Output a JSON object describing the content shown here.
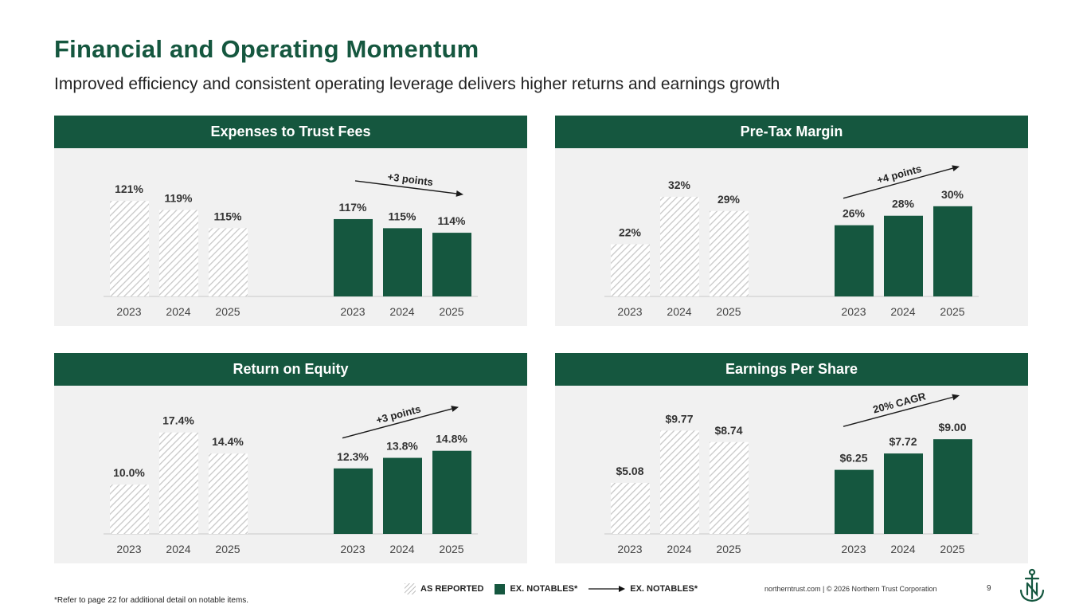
{
  "page": {
    "title": "Financial and Operating Momentum",
    "subtitle": "Improved efficiency and consistent operating leverage delivers higher returns and earnings growth",
    "footnote": "*Refer to page 22 for additional detail on notable items.",
    "footer": "northerntrust.com | © 2026 Northern Trust Corporation",
    "page_number": "9"
  },
  "legend": {
    "as_reported": "AS REPORTED",
    "ex_notables": "EX. NOTABLES*",
    "ex_notables_trend": "EX. NOTABLES*"
  },
  "colors": {
    "brand": "#15573f",
    "panel_bg": "#f1f1f1",
    "hatch": "#c8c8c8"
  },
  "chart_data": [
    {
      "type": "bar",
      "title": "Expenses to Trust Fees",
      "categories": [
        "2023",
        "2024",
        "2025"
      ],
      "ylim": [
        100,
        124
      ],
      "series": [
        {
          "name": "AS REPORTED",
          "values": [
            121,
            119,
            115
          ],
          "labels": [
            "121%",
            "119%",
            "115%"
          ]
        },
        {
          "name": "EX. NOTABLES*",
          "values": [
            117,
            115,
            114
          ],
          "labels": [
            "117%",
            "115%",
            "114%"
          ]
        }
      ],
      "trend": {
        "label": "+3 points",
        "direction": "down"
      }
    },
    {
      "type": "bar",
      "title": "Pre-Tax Margin",
      "categories": [
        "2023",
        "2024",
        "2025"
      ],
      "ylim": [
        11,
        34
      ],
      "series": [
        {
          "name": "AS REPORTED",
          "values": [
            22,
            32,
            29
          ],
          "labels": [
            "22%",
            "32%",
            "29%"
          ]
        },
        {
          "name": "EX. NOTABLES*",
          "values": [
            26,
            28,
            30
          ],
          "labels": [
            "26%",
            "28%",
            "30%"
          ]
        }
      ],
      "trend": {
        "label": "+4 points",
        "direction": "up"
      }
    },
    {
      "type": "bar",
      "title": "Return on Equity",
      "categories": [
        "2023",
        "2024",
        "2025"
      ],
      "ylim": [
        3,
        18.5
      ],
      "series": [
        {
          "name": "AS REPORTED",
          "values": [
            10.0,
            17.4,
            14.4
          ],
          "labels": [
            "10.0%",
            "17.4%",
            "14.4%"
          ]
        },
        {
          "name": "EX. NOTABLES*",
          "values": [
            12.3,
            13.8,
            14.8
          ],
          "labels": [
            "12.3%",
            "13.8%",
            "14.8%"
          ]
        }
      ],
      "trend": {
        "label": "+3 points",
        "direction": "up"
      }
    },
    {
      "type": "bar",
      "title": "Earnings Per Share",
      "categories": [
        "2023",
        "2024",
        "2025"
      ],
      "ylim": [
        0.5,
        10.3
      ],
      "series": [
        {
          "name": "AS REPORTED",
          "values": [
            5.08,
            9.77,
            8.74
          ],
          "labels": [
            "$5.08",
            "$9.77",
            "$8.74"
          ]
        },
        {
          "name": "EX. NOTABLES*",
          "values": [
            6.25,
            7.72,
            9.0
          ],
          "labels": [
            "$6.25",
            "$7.72",
            "$9.00"
          ]
        }
      ],
      "trend": {
        "label": "20% CAGR",
        "direction": "up"
      }
    }
  ]
}
